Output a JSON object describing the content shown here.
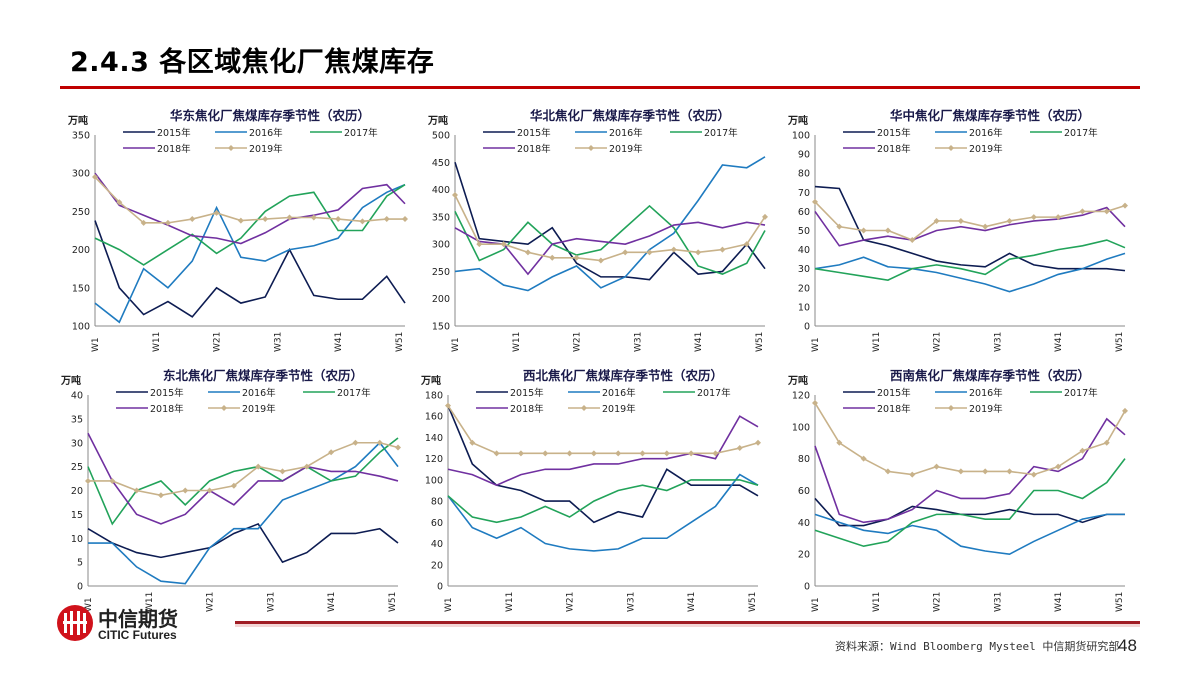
{
  "slide": {
    "title": "2.4.3 各区域焦化厂焦煤库存",
    "source": "资料来源：Wind Bloomberg Mysteel 中信期货研究部",
    "page_number": "48",
    "logo": {
      "cn": "中信期货",
      "en": "CITIC Futures"
    }
  },
  "colors": {
    "2015年": "#0d1c52",
    "2016年": "#1f7bc0",
    "2017年": "#22a35a",
    "2018年": "#7030a0",
    "2019年": "#c8b28a",
    "accent": "#c00000"
  },
  "chart_data": [
    {
      "type": "line",
      "title": "华东焦化厂焦煤库存季节性（农历）",
      "unit": "万吨",
      "ylim": [
        100,
        350
      ],
      "yticks": [
        100,
        150,
        200,
        250,
        300,
        350
      ],
      "xticks": [
        "W1",
        "W11",
        "W21",
        "W31",
        "W41",
        "W51"
      ],
      "legend": "top",
      "x": [
        1,
        5,
        9,
        13,
        17,
        21,
        25,
        29,
        33,
        37,
        41,
        45,
        49,
        52
      ],
      "series": [
        {
          "name": "2015年",
          "values": [
            238,
            150,
            115,
            132,
            112,
            150,
            130,
            138,
            200,
            140,
            135,
            135,
            165,
            130
          ]
        },
        {
          "name": "2016年",
          "values": [
            130,
            105,
            175,
            150,
            185,
            255,
            190,
            185,
            200,
            205,
            215,
            255,
            275,
            285
          ]
        },
        {
          "name": "2017年",
          "values": [
            215,
            200,
            180,
            200,
            220,
            195,
            215,
            250,
            270,
            275,
            225,
            225,
            270,
            285
          ]
        },
        {
          "name": "2018年",
          "values": [
            300,
            258,
            245,
            232,
            218,
            215,
            208,
            222,
            240,
            245,
            252,
            280,
            285,
            260
          ]
        },
        {
          "name": "2019年",
          "values": [
            295,
            262,
            235,
            235,
            240,
            248,
            238,
            240,
            242,
            242,
            240,
            237,
            240,
            240
          ]
        }
      ]
    },
    {
      "type": "line",
      "title": "华北焦化厂焦煤库存季节性（农历）",
      "unit": "万吨",
      "ylim": [
        150,
        500
      ],
      "yticks": [
        150,
        200,
        250,
        300,
        350,
        400,
        450,
        500
      ],
      "xticks": [
        "W1",
        "W11",
        "W21",
        "W31",
        "W41",
        "W51"
      ],
      "legend": "top",
      "x": [
        1,
        5,
        9,
        13,
        17,
        21,
        25,
        29,
        33,
        37,
        41,
        45,
        49,
        52
      ],
      "series": [
        {
          "name": "2015年",
          "values": [
            450,
            310,
            305,
            300,
            330,
            265,
            240,
            240,
            235,
            285,
            245,
            250,
            300,
            255
          ]
        },
        {
          "name": "2016年",
          "values": [
            250,
            255,
            225,
            215,
            240,
            260,
            220,
            240,
            290,
            320,
            380,
            445,
            440,
            460
          ]
        },
        {
          "name": "2017年",
          "values": [
            360,
            270,
            290,
            340,
            300,
            280,
            290,
            330,
            370,
            330,
            260,
            245,
            265,
            325
          ]
        },
        {
          "name": "2018年",
          "values": [
            330,
            305,
            300,
            245,
            300,
            310,
            305,
            300,
            315,
            335,
            340,
            330,
            340,
            335
          ]
        },
        {
          "name": "2019年",
          "values": [
            390,
            300,
            300,
            285,
            275,
            275,
            270,
            285,
            285,
            290,
            285,
            290,
            300,
            350
          ]
        }
      ]
    },
    {
      "type": "line",
      "title": "华中焦化厂焦煤库存季节性（农历）",
      "unit": "万吨",
      "ylim": [
        0,
        100
      ],
      "yticks": [
        0,
        10,
        20,
        30,
        40,
        50,
        60,
        70,
        80,
        90,
        100
      ],
      "xticks": [
        "W1",
        "W11",
        "W21",
        "W31",
        "W41",
        "W51"
      ],
      "legend": "top",
      "x": [
        1,
        5,
        9,
        13,
        17,
        21,
        25,
        29,
        33,
        37,
        41,
        45,
        49,
        52
      ],
      "series": [
        {
          "name": "2015年",
          "values": [
            73,
            72,
            45,
            42,
            38,
            34,
            32,
            31,
            38,
            32,
            30,
            30,
            30,
            29
          ]
        },
        {
          "name": "2016年",
          "values": [
            30,
            32,
            36,
            31,
            30,
            28,
            25,
            22,
            18,
            22,
            27,
            30,
            35,
            38
          ]
        },
        {
          "name": "2017年",
          "values": [
            30,
            28,
            26,
            24,
            30,
            32,
            30,
            27,
            35,
            37,
            40,
            42,
            45,
            41
          ]
        },
        {
          "name": "2018年",
          "values": [
            60,
            42,
            45,
            47,
            45,
            50,
            52,
            50,
            53,
            55,
            56,
            58,
            62,
            52
          ]
        },
        {
          "name": "2019年",
          "values": [
            65,
            52,
            50,
            50,
            45,
            55,
            55,
            52,
            55,
            57,
            57,
            60,
            60,
            63
          ]
        }
      ]
    },
    {
      "type": "line",
      "title": "东北焦化厂焦煤库存季节性（农历）",
      "unit": "万吨",
      "ylim": [
        0,
        40
      ],
      "yticks": [
        0,
        5,
        10,
        15,
        20,
        25,
        30,
        35,
        40
      ],
      "xticks": [
        "W1",
        "W11",
        "W21",
        "W31",
        "W41",
        "W51"
      ],
      "legend": "top",
      "x": [
        1,
        5,
        9,
        13,
        17,
        21,
        25,
        29,
        33,
        37,
        41,
        45,
        49,
        52
      ],
      "series": [
        {
          "name": "2015年",
          "values": [
            12,
            9,
            7,
            6,
            7,
            8,
            11,
            13,
            5,
            7,
            11,
            11,
            12,
            9
          ]
        },
        {
          "name": "2016年",
          "values": [
            9,
            9,
            4,
            1,
            0.5,
            8,
            12,
            12,
            18,
            20,
            22,
            25,
            30,
            25
          ]
        },
        {
          "name": "2017年",
          "values": [
            25,
            13,
            20,
            22,
            17,
            22,
            24,
            25,
            22,
            25,
            22,
            23,
            28,
            31
          ]
        },
        {
          "name": "2018年",
          "values": [
            32,
            22,
            15,
            13,
            15,
            20,
            17,
            22,
            22,
            25,
            24,
            24,
            23,
            22
          ]
        },
        {
          "name": "2019年",
          "values": [
            22,
            22,
            20,
            19,
            20,
            20,
            21,
            25,
            24,
            25,
            28,
            30,
            30,
            29
          ]
        }
      ]
    },
    {
      "type": "line",
      "title": "西北焦化厂焦煤库存季节性（农历）",
      "unit": "万吨",
      "ylim": [
        0,
        180
      ],
      "yticks": [
        0,
        20,
        40,
        60,
        80,
        100,
        120,
        140,
        160,
        180
      ],
      "xticks": [
        "W1",
        "W11",
        "W21",
        "W31",
        "W41",
        "W51"
      ],
      "legend": "top",
      "x": [
        1,
        5,
        9,
        13,
        17,
        21,
        25,
        29,
        33,
        37,
        41,
        45,
        49,
        52
      ],
      "series": [
        {
          "name": "2015年",
          "values": [
            170,
            115,
            95,
            90,
            80,
            80,
            60,
            70,
            65,
            110,
            95,
            95,
            95,
            85
          ]
        },
        {
          "name": "2016年",
          "values": [
            85,
            55,
            45,
            55,
            40,
            35,
            33,
            35,
            45,
            45,
            60,
            75,
            105,
            95
          ]
        },
        {
          "name": "2017年",
          "values": [
            85,
            65,
            60,
            65,
            75,
            65,
            80,
            90,
            95,
            90,
            100,
            100,
            100,
            95
          ]
        },
        {
          "name": "2018年",
          "values": [
            110,
            105,
            95,
            105,
            110,
            110,
            115,
            115,
            120,
            120,
            125,
            120,
            160,
            150
          ]
        },
        {
          "name": "2019年",
          "values": [
            170,
            135,
            125,
            125,
            125,
            125,
            125,
            125,
            125,
            125,
            125,
            125,
            130,
            135
          ]
        }
      ]
    },
    {
      "type": "line",
      "title": "西南焦化厂焦煤库存季节性（农历）",
      "unit": "万吨",
      "ylim": [
        0,
        120
      ],
      "yticks": [
        0,
        20,
        40,
        60,
        80,
        100,
        120
      ],
      "xticks": [
        "W1",
        "W11",
        "W21",
        "W31",
        "W41",
        "W51"
      ],
      "legend": "top",
      "x": [
        1,
        5,
        9,
        13,
        17,
        21,
        25,
        29,
        33,
        37,
        41,
        45,
        49,
        52
      ],
      "series": [
        {
          "name": "2015年",
          "values": [
            55,
            38,
            38,
            42,
            50,
            48,
            45,
            45,
            48,
            45,
            45,
            40,
            45,
            45
          ]
        },
        {
          "name": "2016年",
          "values": [
            45,
            40,
            35,
            33,
            38,
            35,
            25,
            22,
            20,
            28,
            35,
            42,
            45,
            45
          ]
        },
        {
          "name": "2017年",
          "values": [
            35,
            30,
            25,
            28,
            40,
            45,
            45,
            42,
            42,
            60,
            60,
            55,
            65,
            80
          ]
        },
        {
          "name": "2018年",
          "values": [
            88,
            45,
            40,
            42,
            48,
            60,
            55,
            55,
            58,
            75,
            72,
            80,
            105,
            95
          ]
        },
        {
          "name": "2019年",
          "values": [
            115,
            90,
            80,
            72,
            70,
            75,
            72,
            72,
            72,
            70,
            75,
            85,
            90,
            110
          ]
        }
      ]
    }
  ]
}
